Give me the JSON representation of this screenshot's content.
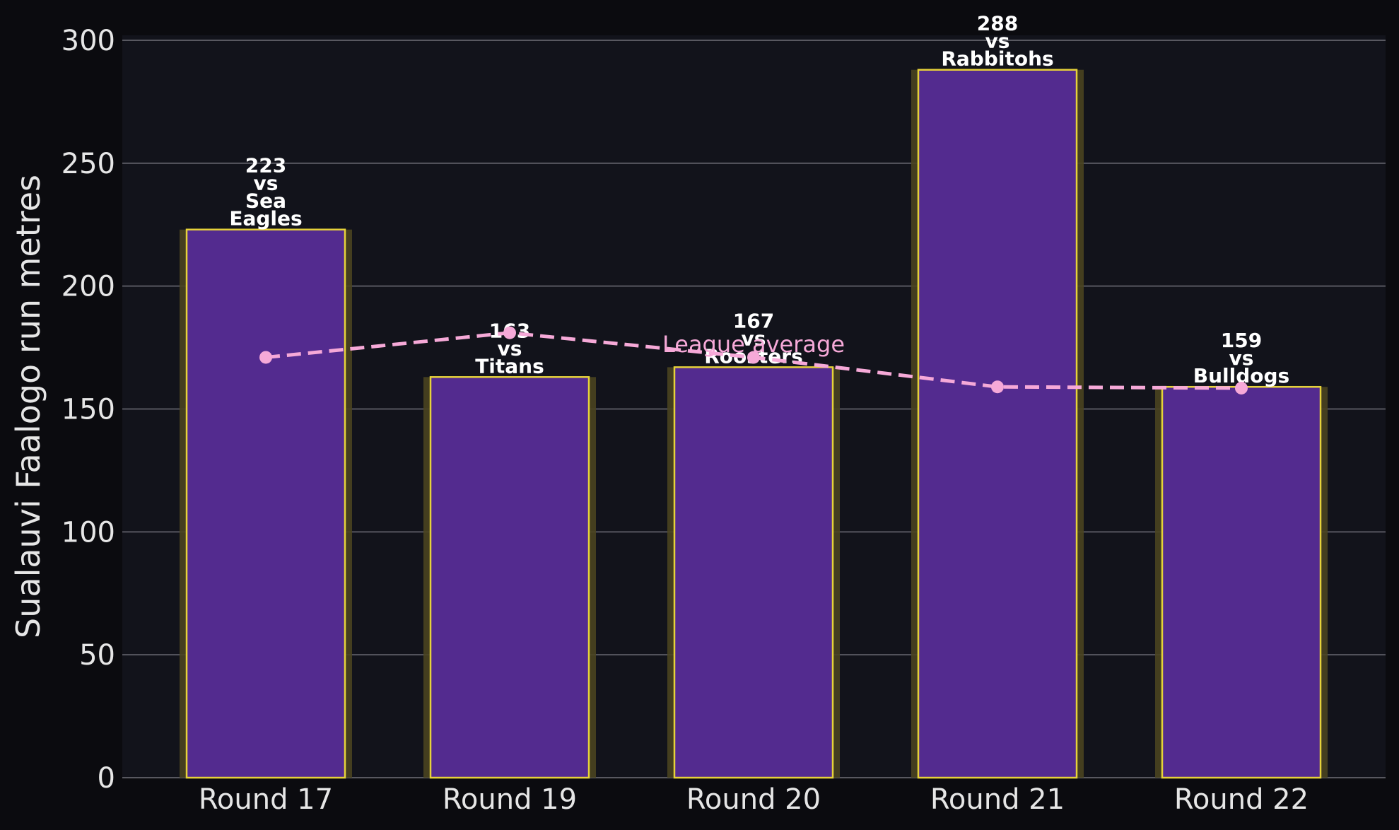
{
  "colors": {
    "page_background": "#0b0b0f",
    "plot_background": "#12131b",
    "grid": "#6f6f78",
    "bar_fill": "#532b8f",
    "bar_edge": "#e6d23a",
    "bar_glow": "#4a4420",
    "average_line": "#f6a9d8",
    "text": "#e6e6e6",
    "label_text": "#ffffff"
  },
  "chart_data": {
    "type": "bar",
    "categories": [
      "Round 17",
      "Round 19",
      "Round 20",
      "Round 21",
      "Round 22"
    ],
    "values": [
      223,
      163,
      167,
      288,
      159
    ],
    "bar_labels": [
      [
        "223",
        "vs",
        "Sea",
        "Eagles"
      ],
      [
        "163",
        "vs",
        "Titans"
      ],
      [
        "167",
        "vs",
        "Roosters"
      ],
      [
        "288",
        "vs",
        "Rabbitohs"
      ],
      [
        "159",
        "vs",
        "Bulldogs"
      ]
    ],
    "series": [
      {
        "name": "League average",
        "type": "line",
        "style": "dashed",
        "values": [
          171,
          181,
          171,
          159,
          158.5
        ]
      }
    ],
    "xlabel": "",
    "ylabel": "Sualauvi Faalogo run metres",
    "ylim": [
      0,
      300
    ],
    "yticks": [
      0,
      50,
      100,
      150,
      200,
      250,
      300
    ],
    "grid": "horizontal",
    "legend": "annotation near Round 20"
  }
}
